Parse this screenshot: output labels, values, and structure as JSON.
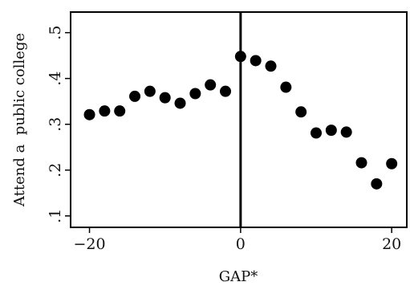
{
  "chart_data": {
    "type": "scatter",
    "title": "",
    "xlabel": "GAP*",
    "ylabel": "Attend a  public college",
    "xlim": [
      -22.5,
      22
    ],
    "ylim": [
      0.075,
      0.545
    ],
    "xticks": [
      -20,
      0,
      20
    ],
    "xtick_labels": [
      "−20",
      "0",
      "20"
    ],
    "yticks": [
      0.1,
      0.2,
      0.3,
      0.4,
      0.5
    ],
    "ytick_labels": [
      ".1",
      ".2",
      ".3",
      ".4",
      ".5"
    ],
    "vline_x": 0,
    "grid": false,
    "marker_color": "#000000",
    "points": [
      {
        "x": -20,
        "y": 0.321
      },
      {
        "x": -18,
        "y": 0.329
      },
      {
        "x": -16,
        "y": 0.329
      },
      {
        "x": -14,
        "y": 0.361
      },
      {
        "x": -12,
        "y": 0.372
      },
      {
        "x": -10,
        "y": 0.358
      },
      {
        "x": -8,
        "y": 0.346
      },
      {
        "x": -6,
        "y": 0.367
      },
      {
        "x": -4,
        "y": 0.386
      },
      {
        "x": -2,
        "y": 0.372
      },
      {
        "x": 0,
        "y": 0.448
      },
      {
        "x": 2,
        "y": 0.439
      },
      {
        "x": 4,
        "y": 0.427
      },
      {
        "x": 6,
        "y": 0.381
      },
      {
        "x": 8,
        "y": 0.327
      },
      {
        "x": 10,
        "y": 0.281
      },
      {
        "x": 12,
        "y": 0.287
      },
      {
        "x": 14,
        "y": 0.283
      },
      {
        "x": 16,
        "y": 0.216
      },
      {
        "x": 18,
        "y": 0.17
      },
      {
        "x": 20,
        "y": 0.214
      }
    ]
  }
}
